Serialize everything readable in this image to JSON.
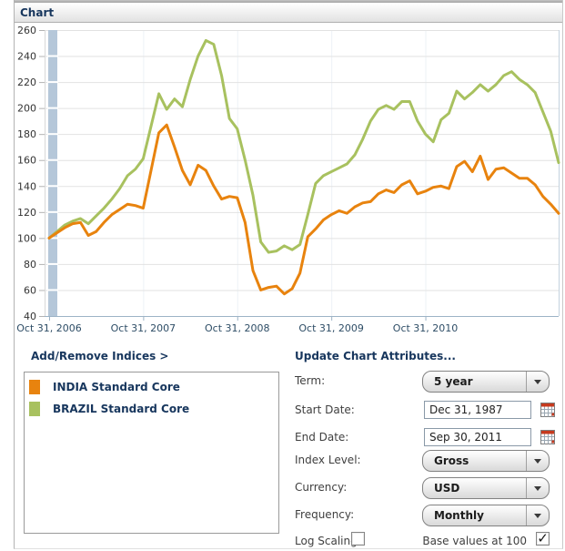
{
  "header": {
    "title": "Chart"
  },
  "chart_data": {
    "type": "line",
    "x_unit": "month",
    "x_ticks": [
      {
        "index": 0,
        "label": "Oct 31, 2006"
      },
      {
        "index": 12,
        "label": "Oct 31, 2007"
      },
      {
        "index": 24,
        "label": "Oct 31, 2008"
      },
      {
        "index": 36,
        "label": "Oct 31, 2009"
      },
      {
        "index": 48,
        "label": "Oct 31, 2010"
      }
    ],
    "ylim": [
      40,
      260
    ],
    "y_ticks": [
      260,
      240,
      220,
      200,
      180,
      160,
      140,
      120,
      100,
      80,
      60,
      40
    ],
    "base_value": 100,
    "grid": true,
    "legend_position": "below-left",
    "series": [
      {
        "name": "INDIA Standard Core",
        "color": "#e8830e",
        "values": [
          100,
          104,
          108,
          111,
          112,
          102,
          105,
          112,
          118,
          122,
          126,
          125,
          123,
          152,
          181,
          187,
          170,
          152,
          141,
          156,
          152,
          140,
          130,
          132,
          131,
          112,
          75,
          60,
          62,
          63,
          57,
          61,
          73,
          101,
          107,
          114,
          118,
          121,
          119,
          124,
          127,
          128,
          134,
          137,
          135,
          141,
          144,
          134,
          136,
          139,
          140,
          138,
          155,
          159,
          151,
          163,
          145,
          153,
          154,
          150,
          146,
          146,
          141,
          132,
          126,
          119
        ]
      },
      {
        "name": "BRAZIL Standard Core",
        "color": "#a8c15f",
        "values": [
          100,
          105,
          110,
          113,
          115,
          111,
          117,
          123,
          130,
          138,
          148,
          153,
          161,
          186,
          211,
          199,
          207,
          201,
          222,
          240,
          252,
          249,
          225,
          192,
          184,
          160,
          133,
          97,
          89,
          90,
          94,
          91,
          95,
          118,
          142,
          148,
          151,
          154,
          157,
          164,
          176,
          190,
          199,
          202,
          199,
          205,
          205,
          190,
          180,
          174,
          191,
          196,
          213,
          207,
          212,
          218,
          213,
          218,
          225,
          228,
          222,
          218,
          212,
          197,
          182,
          158
        ]
      }
    ]
  },
  "legend": {
    "add_remove_label": "Add/Remove Indices >",
    "items": [
      {
        "label": "INDIA Standard Core",
        "color": "#e8830e"
      },
      {
        "label": "BRAZIL Standard Core",
        "color": "#a8c15f"
      }
    ]
  },
  "attributes_panel": {
    "title": "Update Chart Attributes...",
    "term": {
      "label": "Term:",
      "value": "5 year"
    },
    "start_date": {
      "label": "Start Date:",
      "value": "Dec 31, 1987"
    },
    "end_date": {
      "label": "End Date:",
      "value": "Sep 30, 2011"
    },
    "index_level": {
      "label": "Index Level:",
      "value": "Gross"
    },
    "currency": {
      "label": "Currency:",
      "value": "USD"
    },
    "frequency": {
      "label": "Frequency:",
      "value": "Monthly"
    },
    "log_scaling": {
      "label": "Log Scaling",
      "checked": false
    },
    "base_values": {
      "label": "Base values at 100",
      "checked": true
    }
  },
  "colors": {
    "axis_line": "#9db3c6",
    "gridline": "#e2e2e2",
    "band": "#b5c7d9",
    "heading_text": "#17365d"
  }
}
